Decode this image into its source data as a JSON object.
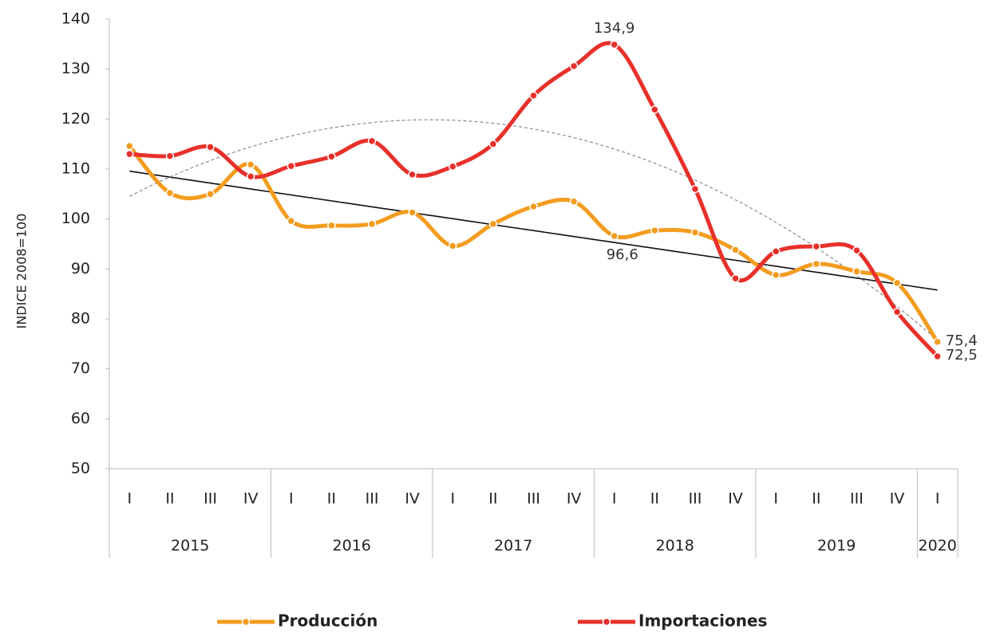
{
  "chart_data": {
    "type": "line",
    "y_label": "INDICE 2008=100",
    "categories": [
      "I",
      "II",
      "III",
      "IV",
      "I",
      "II",
      "III",
      "IV",
      "I",
      "II",
      "III",
      "IV",
      "I",
      "II",
      "III",
      "IV",
      "I",
      "II",
      "III",
      "IV",
      "I"
    ],
    "x_groups": [
      {
        "label": "2015",
        "count": 4
      },
      {
        "label": "2016",
        "count": 4
      },
      {
        "label": "2017",
        "count": 4
      },
      {
        "label": "2018",
        "count": 4
      },
      {
        "label": "2019",
        "count": 4
      },
      {
        "label": "2020",
        "count": 1
      }
    ],
    "series": [
      {
        "name": "Producción",
        "color": "#f39c1f",
        "values": [
          114.6,
          105.2,
          105.0,
          110.9,
          99.6,
          98.7,
          99.0,
          101.3,
          94.6,
          99.0,
          102.5,
          103.5,
          96.6,
          97.7,
          97.3,
          93.8,
          88.8,
          91.0,
          89.5,
          87.2,
          75.4
        ],
        "value_labels": [
          null,
          null,
          null,
          null,
          null,
          null,
          null,
          null,
          null,
          null,
          null,
          null,
          "96,6",
          null,
          null,
          null,
          null,
          null,
          null,
          null,
          "75,4"
        ]
      },
      {
        "name": "Importaciones",
        "color": "#e8302a",
        "values": [
          113.0,
          112.6,
          114.4,
          108.5,
          110.6,
          112.5,
          115.6,
          108.9,
          110.5,
          115.0,
          124.7,
          130.6,
          134.9,
          121.9,
          106.0,
          88.1,
          93.5,
          94.5,
          93.7,
          81.4,
          72.5
        ],
        "value_labels": [
          null,
          null,
          null,
          null,
          null,
          null,
          null,
          null,
          null,
          null,
          null,
          null,
          "134,9",
          null,
          null,
          null,
          null,
          null,
          null,
          null,
          "72,5"
        ]
      }
    ],
    "trendlines": [
      {
        "series": 0,
        "order": 1,
        "color": "#111111",
        "dashed": false
      },
      {
        "series": 1,
        "order": 2,
        "color": "#8a8a8a",
        "dashed": true
      }
    ],
    "ylim": [
      50,
      140
    ],
    "yticks": [
      50,
      60,
      70,
      80,
      90,
      100,
      110,
      120,
      130,
      140
    ],
    "legend": "bottom"
  }
}
